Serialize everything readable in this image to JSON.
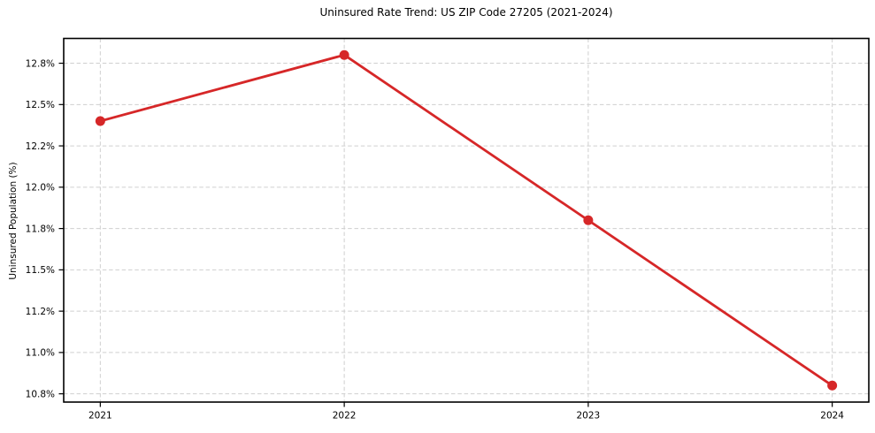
{
  "figure": {
    "background": "#ffffff",
    "text_color": "#000000",
    "spine_color": "#000000"
  },
  "chart_data": {
    "type": "line",
    "title": "Uninsured Rate Trend: US ZIP Code 27205 (2021-2024)",
    "xlabel": "",
    "ylabel": "Uninsured Population (%)",
    "x": [
      2021,
      2022,
      2023,
      2024
    ],
    "values": [
      12.4,
      12.8,
      11.8,
      10.8
    ],
    "line_color": "#d62728",
    "marker": "circle",
    "grid": true,
    "grid_style": "dashed",
    "grid_color": "#cfcfcf",
    "legend": false,
    "xlim": [
      2020.85,
      2024.15
    ],
    "ylim": [
      10.7,
      12.9
    ],
    "xticks": [
      {
        "v": 2021,
        "label": "2021"
      },
      {
        "v": 2022,
        "label": "2022"
      },
      {
        "v": 2023,
        "label": "2023"
      },
      {
        "v": 2024,
        "label": "2024"
      }
    ],
    "yticks": [
      {
        "v": 10.75,
        "label": "10.8%"
      },
      {
        "v": 11.0,
        "label": "11.0%"
      },
      {
        "v": 11.25,
        "label": "11.2%"
      },
      {
        "v": 11.5,
        "label": "11.5%"
      },
      {
        "v": 11.75,
        "label": "11.8%"
      },
      {
        "v": 12.0,
        "label": "12.0%"
      },
      {
        "v": 12.25,
        "label": "12.2%"
      },
      {
        "v": 12.5,
        "label": "12.5%"
      },
      {
        "v": 12.75,
        "label": "12.8%"
      }
    ]
  }
}
